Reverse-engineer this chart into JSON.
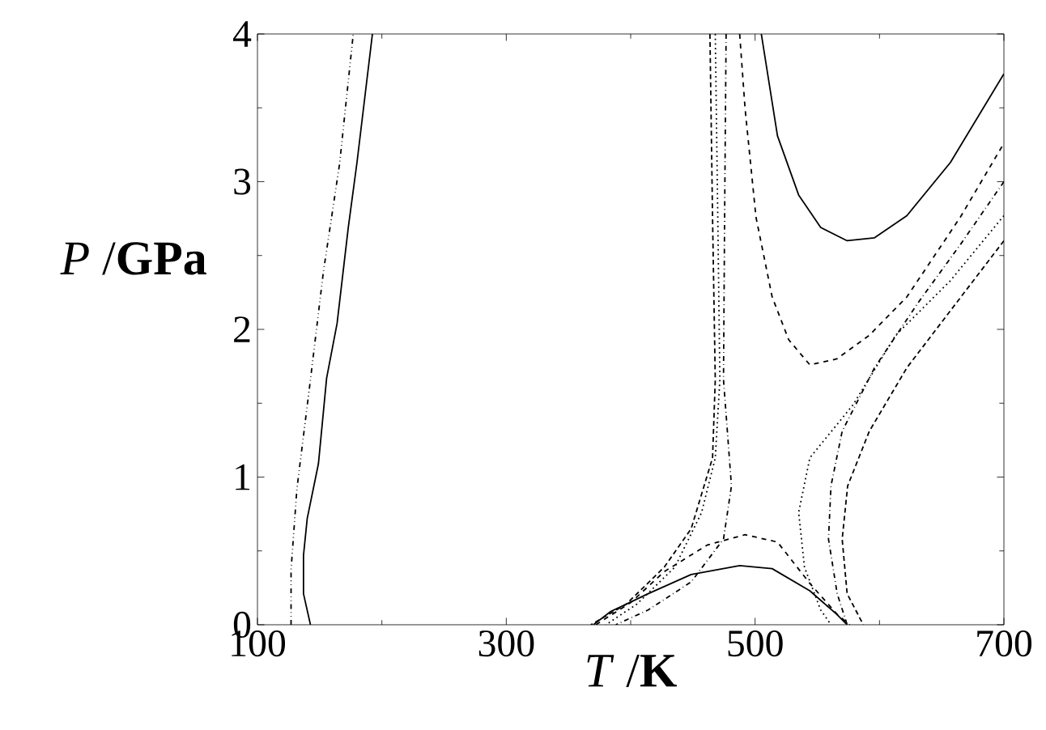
{
  "chart_data": {
    "type": "line",
    "xlabel": "*T* /**K**",
    "ylabel": "*P* /**GPa**",
    "xlim": [
      100,
      700
    ],
    "ylim": [
      0,
      4
    ],
    "xticks": [
      100,
      300,
      500,
      700
    ],
    "yticks": [
      0,
      1,
      2,
      3,
      4
    ],
    "grid": false,
    "marker": "none",
    "series": [
      {
        "color": "#000000",
        "line_style": "solid",
        "x": [
          142.6,
          137,
          137,
          140,
          149,
          155.6,
          164,
          173,
          180,
          192.4
        ],
        "values": [
          0,
          0.21,
          0.47,
          0.72,
          1.09,
          1.67,
          2.04,
          2.69,
          3.13,
          4
        ]
      },
      {
        "color": "#000000",
        "line_style": "dashdotdot",
        "x": [
          127,
          127,
          131.7,
          142.6,
          153,
          166,
          177
        ],
        "values": [
          0,
          0.37,
          0.92,
          1.66,
          2.39,
          3.12,
          4
        ]
      },
      {
        "color": "#000000",
        "line_style": "solid",
        "x": [
          505,
          518,
          535,
          552.7,
          574,
          596,
          622,
          657,
          700
        ],
        "values": [
          4,
          3.31,
          2.91,
          2.69,
          2.6,
          2.62,
          2.77,
          3.13,
          3.73
        ]
      },
      {
        "color": "#000000",
        "line_style": "solid",
        "x": [
          370,
          384,
          414,
          448.6,
          487.6,
          513.7,
          544,
          565.7,
          574
        ],
        "values": [
          0,
          0.09,
          0.21,
          0.34,
          0.4,
          0.38,
          0.23,
          0.07,
          0
        ]
      },
      {
        "color": "#000000",
        "line_style": "dashed",
        "x": [
          487.6,
          492,
          500.7,
          513.7,
          527,
          544,
          565.7,
          591.8,
          622,
          665,
          700
        ],
        "values": [
          4,
          3.49,
          2.76,
          2.22,
          1.93,
          1.76,
          1.8,
          1.96,
          2.22,
          2.76,
          3.26
        ]
      },
      {
        "color": "#000000",
        "line_style": "dashed",
        "x": [
          372,
          400,
          427,
          461.6,
          492,
          518,
          544,
          566,
          576
        ],
        "values": [
          0,
          0.15,
          0.36,
          0.54,
          0.61,
          0.56,
          0.28,
          0.07,
          0
        ]
      },
      {
        "color": "#000000",
        "line_style": "dashdot",
        "x": [
          476.7,
          475.5,
          474.6,
          481,
          474.6,
          448.6,
          414,
          388
        ],
        "values": [
          4,
          2.76,
          1.66,
          0.94,
          0.58,
          0.29,
          0.1,
          0
        ]
      },
      {
        "color": "#000000",
        "line_style": "dashdot",
        "x": [
          700,
          665.5,
          631,
          596,
          570,
          561,
          559,
          566,
          574
        ],
        "values": [
          3.0,
          2.58,
          2.18,
          1.74,
          1.31,
          0.94,
          0.58,
          0.21,
          0
        ]
      },
      {
        "color": "#000000",
        "line_style": "dotted",
        "x": [
          468,
          470,
          471.7,
          468,
          457,
          435.5,
          405,
          380
        ],
        "values": [
          4,
          2.76,
          1.66,
          1.13,
          0.76,
          0.39,
          0.14,
          0
        ]
      },
      {
        "color": "#000000",
        "line_style": "dotted",
        "x": [
          700,
          657,
          613,
          578.8,
          544,
          535,
          539.7,
          552.7,
          561
        ],
        "values": [
          2.77,
          2.33,
          1.96,
          1.49,
          1.13,
          0.76,
          0.39,
          0.1,
          0
        ]
      },
      {
        "color": "#000000",
        "line_style": "densedash",
        "x": [
          463.7,
          465.8,
          468,
          465.8,
          448.6,
          427,
          396.5,
          368
        ],
        "values": [
          4,
          2.76,
          1.66,
          1.13,
          0.65,
          0.39,
          0.14,
          0
        ]
      },
      {
        "color": "#000000",
        "line_style": "densedash",
        "x": [
          700,
          665.5,
          622,
          591.8,
          574.4,
          570,
          574,
          587
        ],
        "values": [
          2.6,
          2.22,
          1.74,
          1.31,
          0.94,
          0.58,
          0.21,
          0
        ]
      }
    ]
  }
}
